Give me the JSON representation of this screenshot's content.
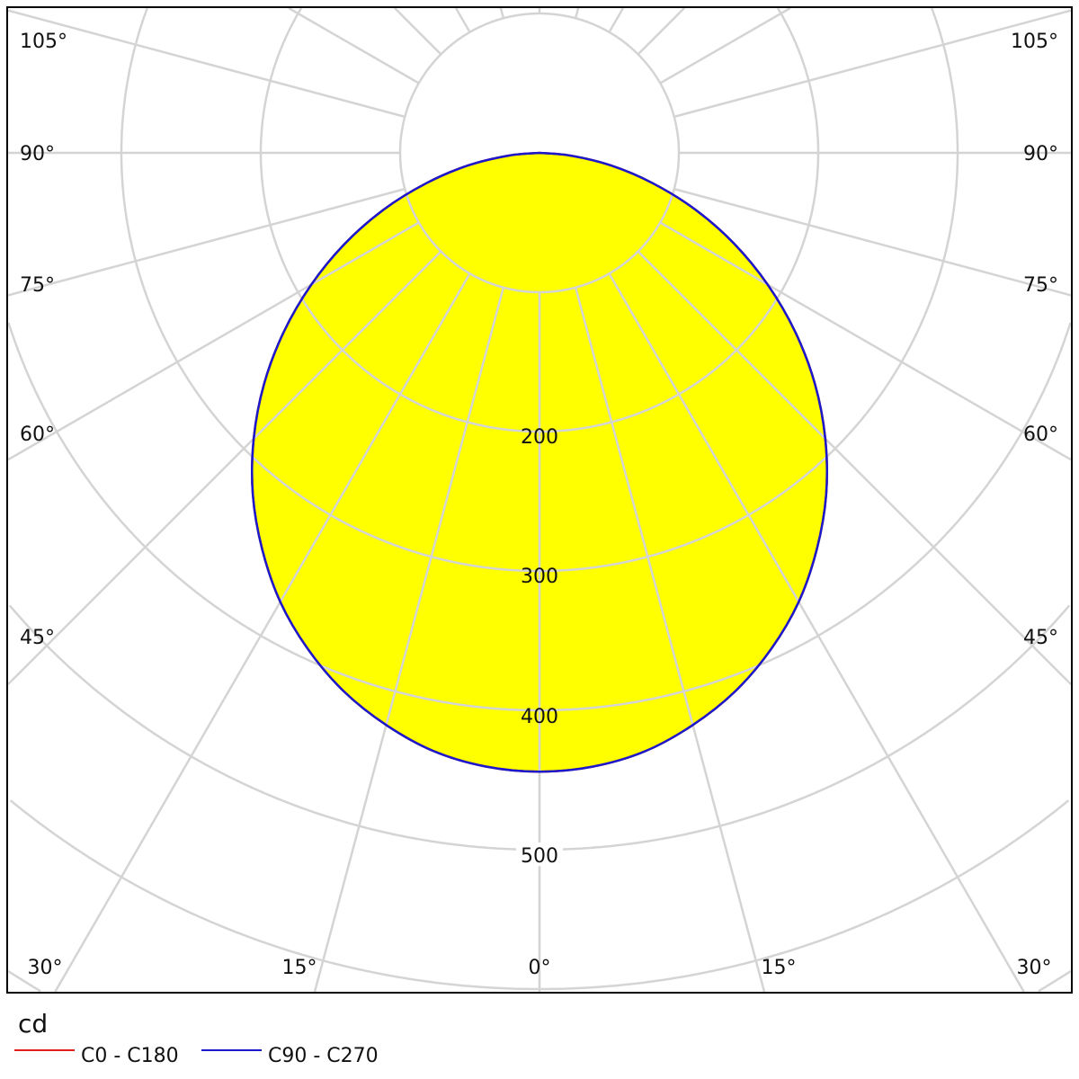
{
  "chart_data": {
    "type": "polar",
    "unit_label": "cd",
    "radial_ticks": [
      100,
      200,
      300,
      400,
      500,
      600,
      700,
      800
    ],
    "radial_tick_labels": [
      "200",
      "300",
      "400",
      "500"
    ],
    "angle_step_deg": 15,
    "angle_labels": {
      "left": [
        "105°",
        "90°",
        "75°",
        "60°",
        "45°"
      ],
      "right": [
        "105°",
        "90°",
        "75°",
        "60°",
        "45°"
      ],
      "bottom": [
        "30°",
        "15°",
        "0°",
        "15°",
        "30°"
      ]
    },
    "grid": true,
    "legend_position": "bottom-left",
    "angles_deg": [
      0,
      5,
      10,
      15,
      20,
      25,
      30,
      35,
      40,
      45,
      50,
      55,
      60,
      65,
      70,
      75,
      80,
      85,
      90
    ],
    "series": [
      {
        "name": "C0 - C180",
        "color": "#e02020",
        "values": [
          444,
          442,
          436,
          425,
          411,
          393,
          372,
          347,
          320,
          290,
          258,
          224,
          189,
          154,
          119,
          84,
          52,
          22,
          0
        ]
      },
      {
        "name": "C90 - C270",
        "color": "#1a1acc",
        "values": [
          444,
          442,
          436,
          425,
          411,
          393,
          372,
          347,
          320,
          290,
          258,
          224,
          189,
          154,
          119,
          84,
          52,
          22,
          0
        ]
      }
    ],
    "fill_color": "#ffff00",
    "grid_color": "#d4d4d4"
  }
}
